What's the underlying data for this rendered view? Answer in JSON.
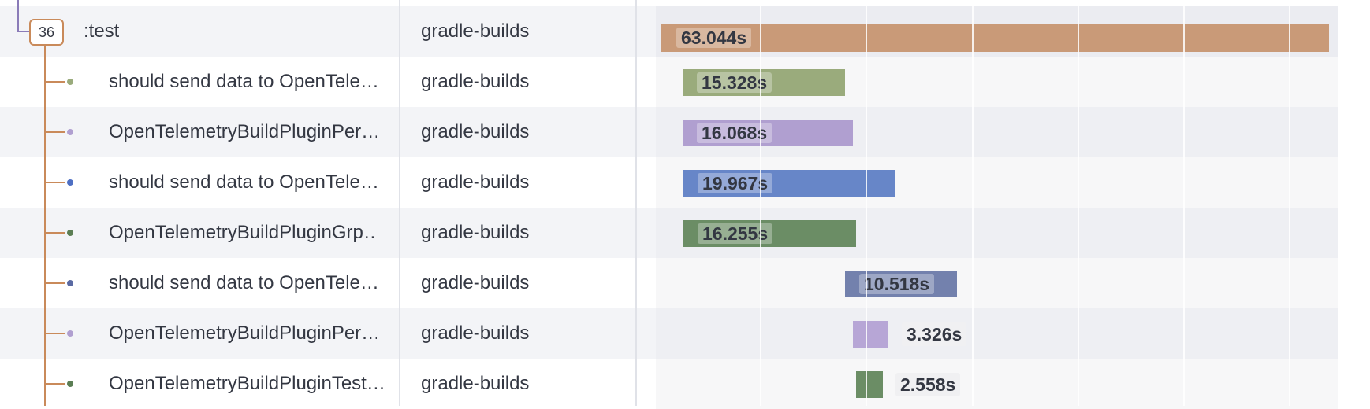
{
  "parent": {
    "badge_count": "36",
    "name": ":test",
    "project": "gradle-builds",
    "duration": "63.044s",
    "color": "#c99a78"
  },
  "rows": [
    {
      "name": "should send data to OpenTele…",
      "project": "gradle-builds",
      "duration": "15.328s",
      "color": "#9aab7c",
      "dot": "#9aab7c",
      "icon": "green-dot-icon"
    },
    {
      "name": "OpenTelemetryBuildPluginPer…",
      "project": "gradle-builds",
      "duration": "16.068s",
      "color": "#b09fd0",
      "dot": "#b09fd0",
      "icon": "purple-dot-icon"
    },
    {
      "name": "should send data to OpenTele…",
      "project": "gradle-builds",
      "duration": "19.967s",
      "color": "#6786c8",
      "dot": "#4e6fc3",
      "icon": "blue-dot-icon"
    },
    {
      "name": "OpenTelemetryBuildPluginGrp…",
      "project": "gradle-builds",
      "duration": "16.255s",
      "color": "#6b8d65",
      "dot": "#5b7e54",
      "icon": "green-dot-icon"
    },
    {
      "name": "should send data to OpenTele…",
      "project": "gradle-builds",
      "duration": "10.518s",
      "color": "#7381ad",
      "dot": "#5a6aa3",
      "icon": "navy-dot-icon"
    },
    {
      "name": "OpenTelemetryBuildPluginPer…",
      "project": "gradle-builds",
      "duration": "3.326s",
      "color": "#b7a6d6",
      "dot": "#b09fd0",
      "icon": "purple-dot-icon"
    },
    {
      "name": "OpenTelemetryBuildPluginTest…",
      "project": "gradle-builds",
      "duration": "2.558s",
      "color": "#6b8d65",
      "dot": "#5b7e54",
      "icon": "green-dot-icon"
    }
  ]
}
